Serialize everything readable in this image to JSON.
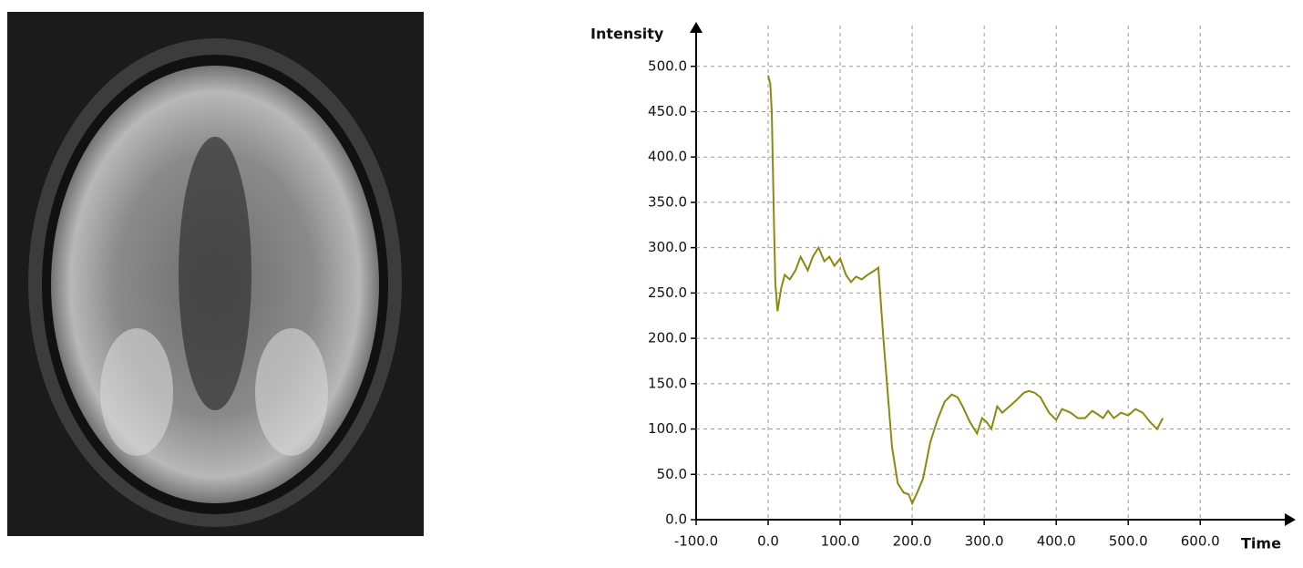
{
  "chart_data": {
    "type": "line",
    "xlabel": "Time",
    "ylabel": "Intensity",
    "xlim": [
      -100,
      730
    ],
    "ylim": [
      0,
      545
    ],
    "xticks": [
      {
        "value": -100,
        "label": "-100.0"
      },
      {
        "value": 0,
        "label": "0.0"
      },
      {
        "value": 100,
        "label": "100.0"
      },
      {
        "value": 200,
        "label": "200.0"
      },
      {
        "value": 300,
        "label": "300.0"
      },
      {
        "value": 400,
        "label": "400.0"
      },
      {
        "value": 500,
        "label": "500.0"
      },
      {
        "value": 600,
        "label": "600.0"
      }
    ],
    "yticks": [
      {
        "value": 0,
        "label": "0.0"
      },
      {
        "value": 50,
        "label": "50.0"
      },
      {
        "value": 100,
        "label": "100.0"
      },
      {
        "value": 150,
        "label": "150.0"
      },
      {
        "value": 200,
        "label": "200.0"
      },
      {
        "value": 250,
        "label": "250.0"
      },
      {
        "value": 300,
        "label": "300.0"
      },
      {
        "value": 350,
        "label": "350.0"
      },
      {
        "value": 400,
        "label": "400.0"
      },
      {
        "value": 450,
        "label": "450.0"
      },
      {
        "value": 500,
        "label": "500.0"
      }
    ],
    "grid": true,
    "color": "#8a8a12",
    "x": [
      0,
      3,
      5,
      8,
      10,
      13,
      18,
      23,
      30,
      38,
      45,
      55,
      62,
      70,
      78,
      85,
      92,
      100,
      108,
      115,
      122,
      130,
      138,
      148,
      153,
      160,
      165,
      172,
      180,
      188,
      195,
      200,
      207,
      215,
      225,
      235,
      245,
      255,
      263,
      270,
      280,
      290,
      297,
      303,
      310,
      318,
      325,
      335,
      345,
      355,
      362,
      370,
      378,
      390,
      400,
      408,
      420,
      430,
      440,
      450,
      458,
      465,
      472,
      480,
      490,
      500,
      510,
      520,
      530,
      540,
      548
    ],
    "values": [
      490,
      480,
      450,
      330,
      260,
      230,
      255,
      270,
      265,
      275,
      290,
      275,
      290,
      300,
      285,
      290,
      280,
      288,
      270,
      262,
      268,
      265,
      270,
      275,
      278,
      200,
      150,
      80,
      40,
      30,
      28,
      18,
      30,
      45,
      85,
      110,
      130,
      138,
      135,
      125,
      108,
      95,
      112,
      108,
      100,
      125,
      118,
      125,
      132,
      140,
      142,
      140,
      135,
      118,
      110,
      122,
      118,
      112,
      112,
      120,
      116,
      112,
      120,
      112,
      118,
      115,
      122,
      118,
      108,
      100,
      112
    ]
  }
}
